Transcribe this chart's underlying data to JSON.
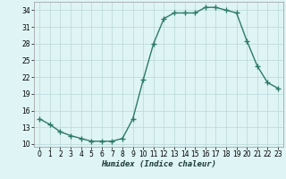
{
  "x": [
    0,
    1,
    2,
    3,
    4,
    5,
    6,
    7,
    8,
    9,
    10,
    11,
    12,
    13,
    14,
    15,
    16,
    17,
    18,
    19,
    20,
    21,
    22,
    23
  ],
  "y": [
    14.5,
    13.5,
    12.2,
    11.5,
    11.0,
    10.5,
    10.5,
    10.5,
    11.0,
    14.5,
    21.5,
    28.0,
    32.5,
    33.5,
    33.5,
    33.5,
    34.5,
    34.5,
    34.0,
    33.5,
    28.5,
    24.0,
    21.0,
    20.0
  ],
  "xlabel": "Humidex (Indice chaleur)",
  "ylim": [
    9.5,
    35.5
  ],
  "yticks": [
    10,
    13,
    16,
    19,
    22,
    25,
    28,
    31,
    34
  ],
  "xticks": [
    0,
    1,
    2,
    3,
    4,
    5,
    6,
    7,
    8,
    9,
    10,
    11,
    12,
    13,
    14,
    15,
    16,
    17,
    18,
    19,
    20,
    21,
    22,
    23
  ],
  "line_color": "#2d7a6a",
  "bg_color": "#dff4f4",
  "grid_color": "#b8d8d8",
  "marker": "+",
  "marker_size": 4,
  "line_width": 1.0,
  "tick_fontsize": 5.5,
  "xlabel_fontsize": 6.5
}
